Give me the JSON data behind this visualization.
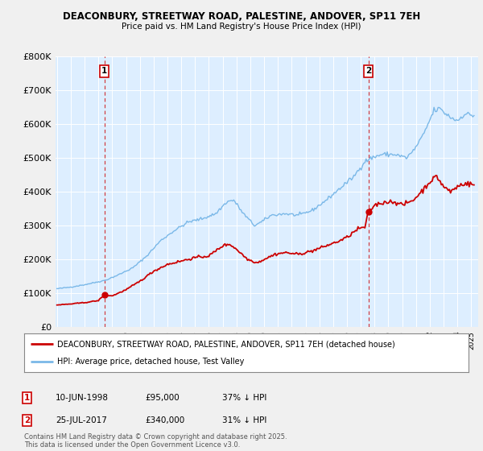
{
  "title_line1": "DEACONBURY, STREETWAY ROAD, PALESTINE, ANDOVER, SP11 7EH",
  "title_line2": "Price paid vs. HM Land Registry's House Price Index (HPI)",
  "ylim": [
    0,
    800000
  ],
  "yticks": [
    0,
    100000,
    200000,
    300000,
    400000,
    500000,
    600000,
    700000,
    800000
  ],
  "ytick_labels": [
    "£0",
    "£100K",
    "£200K",
    "£300K",
    "£400K",
    "£500K",
    "£600K",
    "£700K",
    "£800K"
  ],
  "xlim_start": 1994.9,
  "xlim_end": 2025.5,
  "purchase1_date": 1998.44,
  "purchase1_price": 95000,
  "purchase1_label": "1",
  "purchase2_date": 2017.56,
  "purchase2_price": 340000,
  "purchase2_label": "2",
  "hpi_color": "#7ab8e8",
  "price_color": "#cc0000",
  "background_color": "#f0f0f0",
  "plot_bg_color": "#ddeeff",
  "grid_color": "#ffffff",
  "legend_label_red": "DEACONBURY, STREETWAY ROAD, PALESTINE, ANDOVER, SP11 7EH (detached house)",
  "legend_label_blue": "HPI: Average price, detached house, Test Valley",
  "footer_text": "Contains HM Land Registry data © Crown copyright and database right 2025.\nThis data is licensed under the Open Government Licence v3.0."
}
